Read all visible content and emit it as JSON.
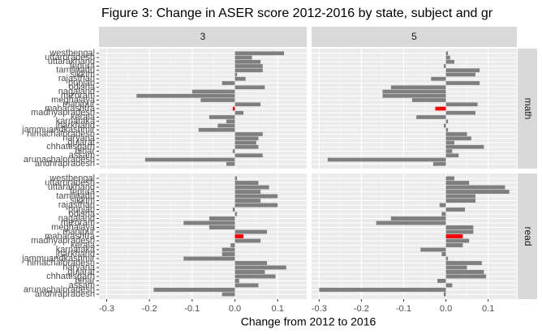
{
  "chart_data": {
    "type": "bar",
    "orientation": "horizontal",
    "title": "Figure 3: Change in ASER score 2012-2016 by state, subject and gr",
    "x_label": "Change from 2012 to 2016",
    "categories": [
      "westbengal",
      "uttarpradesh",
      "uttarakhand",
      "tripura",
      "tamilnadu",
      "sikkim",
      "rajasthan",
      "punjab",
      "odisha",
      "nagaland",
      "mizoram",
      "meghalaya",
      "manipur",
      "maharashtra",
      "madhyapradesh",
      "kerala",
      "karnataka",
      "jharkhand",
      "jammuandkashmir",
      "himachalpradesh",
      "haryana",
      "gujarat",
      "chhattisgarh",
      "bihar",
      "assam",
      "arunachalpradesh",
      "andhrapradesh"
    ],
    "facet_cols": [
      "3",
      "5"
    ],
    "facet_rows": [
      "math",
      "read"
    ],
    "color": "#7f7f7f",
    "highlight": "maharashtra",
    "highlight_color": "#ff0000",
    "panels": [
      {
        "values": [
          0.115,
          0.04,
          0.06,
          0.065,
          0.065,
          0.005,
          0.025,
          -0.03,
          0.07,
          -0.1,
          -0.23,
          -0.08,
          0.06,
          -0.005,
          0.02,
          -0.06,
          -0.02,
          -0.04,
          -0.085,
          0.065,
          0.055,
          0.05,
          0.055,
          -0.005,
          0.065,
          -0.21,
          -0.02
        ]
      },
      {
        "values": [
          0.005,
          0.01,
          0.02,
          -0.005,
          0.08,
          0.07,
          -0.035,
          0.08,
          -0.13,
          -0.15,
          -0.15,
          -0.08,
          0.075,
          -0.025,
          0.07,
          -0.07,
          0.005,
          -0.005,
          0.005,
          0.05,
          0.06,
          0.02,
          0.09,
          0.015,
          0.03,
          -0.28,
          -0.03
        ]
      },
      {
        "values": [
          0.005,
          0.055,
          0.08,
          0.06,
          0.1,
          0.06,
          0.1,
          -0.005,
          0.005,
          -0.06,
          -0.12,
          -0.06,
          0.075,
          0.02,
          0.06,
          -0.01,
          -0.03,
          -0.03,
          -0.12,
          0.075,
          0.12,
          0.07,
          0.095,
          0.01,
          0.055,
          -0.19,
          -0.03
        ]
      },
      {
        "values": [
          0.02,
          0.055,
          0.14,
          0.15,
          0.07,
          0.07,
          -0.015,
          0.045,
          -0.01,
          -0.13,
          -0.165,
          0.065,
          0.065,
          0.04,
          0.055,
          0.04,
          -0.06,
          -0.01,
          0.005,
          0.085,
          0.05,
          0.09,
          0.095,
          -0.02,
          0.015,
          -0.3,
          -0.005
        ]
      }
    ],
    "xlim": [
      -0.318,
      0.168
    ],
    "xticks": [
      -0.3,
      -0.2,
      -0.1,
      {
        "value": 0,
        "label": "0.0"
      },
      0.1
    ],
    "grid": true
  }
}
